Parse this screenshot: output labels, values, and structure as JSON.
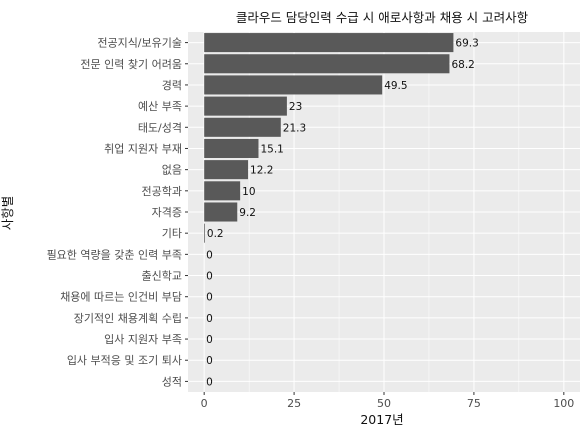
{
  "chart_data": {
    "type": "bar",
    "orientation": "horizontal",
    "title": "클라우드 담당인력 수급 시 애로사항과 채용 시 고려사항",
    "xlabel": "2017년",
    "ylabel": "사항별",
    "xlim": [
      0,
      100
    ],
    "xticks": [
      0,
      25,
      50,
      75,
      100
    ],
    "grid": true,
    "legend": "none",
    "colors": {
      "bar": "#595959",
      "panel": "#ebebeb",
      "grid": "#ffffff"
    },
    "categories": [
      "전공지식/보유기술",
      "전문 인력 찾기 어려움",
      "경력",
      "예산 부족",
      "태도/성격",
      "취업 지원자 부재",
      "없음",
      "전공학과",
      "자격증",
      "기타",
      "필요한 역량을 갖춘 인력 부족",
      "출신학교",
      "채용에 따르는 인건비 부담",
      "장기적인 채용계획 수립",
      "입사 지원자 부족",
      "입사 부적응 및 조기 퇴사",
      "성적"
    ],
    "values": [
      69.3,
      68.2,
      49.5,
      23,
      21.3,
      15.1,
      12.2,
      10,
      9.2,
      0.2,
      0,
      0,
      0,
      0,
      0,
      0,
      0
    ],
    "labels": [
      "69.3",
      "68.2",
      "49.5",
      "23",
      "21.3",
      "15.1",
      "12.2",
      "10",
      "9.2",
      "0.2",
      "0",
      "0",
      "0",
      "0",
      "0",
      "0",
      "0"
    ]
  }
}
